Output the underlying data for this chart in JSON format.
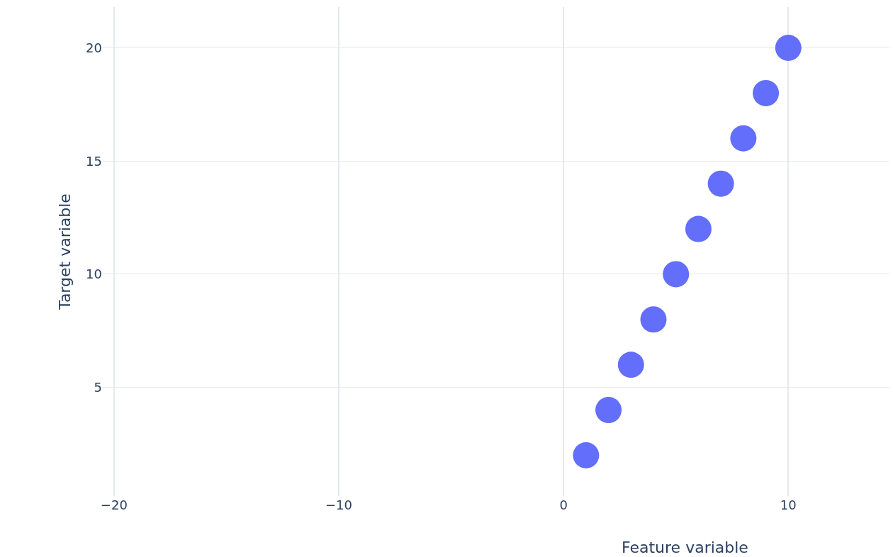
{
  "chart_data": {
    "type": "scatter",
    "xlabel": "Feature variable",
    "ylabel": "Target variable",
    "x": [
      1,
      2,
      3,
      4,
      5,
      6,
      7,
      8,
      9,
      10
    ],
    "series": [
      {
        "color": "#636efa",
        "values": [
          2,
          4,
          6,
          8,
          10,
          12,
          14,
          16,
          18,
          20
        ]
      }
    ],
    "xlim": [
      -20.5,
      14.5
    ],
    "xticks": [
      {
        "value": -20,
        "label": "−20"
      },
      {
        "value": -10,
        "label": "−10"
      },
      0,
      10
    ],
    "ylim": [
      0.2,
      21.8
    ],
    "yticks": [
      5,
      10,
      15,
      20
    ],
    "grid": true,
    "marker": "circle",
    "legend": false
  }
}
